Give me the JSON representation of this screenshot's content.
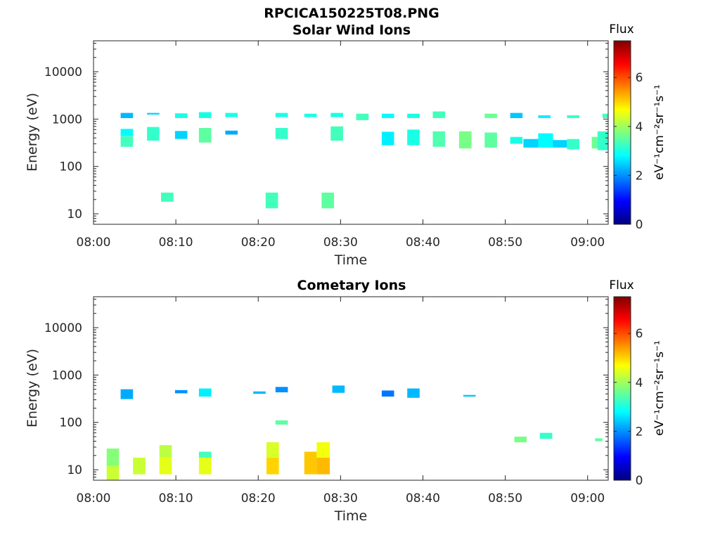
{
  "figure_title": "RPCICA150225T08.PNG",
  "colors": {
    "colormap": [
      "#00007f",
      "#0000ff",
      "#007fff",
      "#00ffff",
      "#7fff7f",
      "#ffff00",
      "#ff7f00",
      "#ff0000",
      "#7f0000"
    ]
  },
  "chart_data": [
    {
      "type": "heatmap",
      "title": "Solar Wind Ions",
      "xlabel": "Time",
      "ylabel": "Energy (eV)",
      "x_ticks": [
        "08:00",
        "08:10",
        "08:20",
        "08:30",
        "08:40",
        "08:50",
        "09:00"
      ],
      "x_range_minutes": [
        0,
        62.5
      ],
      "y_scale": "log",
      "y_ticks": [
        "10",
        "100",
        "1000",
        "10000"
      ],
      "y_range": [
        6,
        45000
      ],
      "colorbar": {
        "title": "Flux",
        "units": "eV⁻¹cm⁻²sr⁻¹s⁻¹",
        "range": [
          0,
          7.5
        ],
        "ticks": [
          "0",
          "2",
          "4",
          "6"
        ]
      },
      "cells": [
        [
          3.3,
          4.8,
          1050,
          1350,
          2.3
        ],
        [
          3.3,
          4.8,
          440,
          620,
          2.8
        ],
        [
          3.3,
          4.8,
          260,
          440,
          3.3
        ],
        [
          6.5,
          8.0,
          1250,
          1350,
          2.5
        ],
        [
          6.5,
          8.0,
          350,
          680,
          3.2
        ],
        [
          9.9,
          11.4,
          1050,
          1320,
          3.0
        ],
        [
          9.9,
          11.4,
          380,
          560,
          2.5
        ],
        [
          12.8,
          14.3,
          1050,
          1400,
          3.0
        ],
        [
          12.8,
          14.3,
          320,
          650,
          3.5
        ],
        [
          16.0,
          17.5,
          1100,
          1350,
          3.0
        ],
        [
          16.0,
          17.5,
          470,
          570,
          2.2
        ],
        [
          8.2,
          9.7,
          18,
          28,
          3.3
        ],
        [
          22.1,
          23.6,
          1100,
          1350,
          3.0
        ],
        [
          22.1,
          23.6,
          380,
          650,
          3.2
        ],
        [
          20.9,
          22.4,
          13,
          28,
          3.3
        ],
        [
          25.6,
          27.1,
          1100,
          1300,
          3.0
        ],
        [
          27.7,
          29.2,
          13,
          28,
          3.5
        ],
        [
          28.8,
          30.3,
          1100,
          1350,
          3.0
        ],
        [
          28.8,
          30.3,
          350,
          700,
          3.3
        ],
        [
          31.9,
          33.4,
          950,
          1300,
          3.3
        ],
        [
          35.0,
          36.5,
          1050,
          1300,
          2.8
        ],
        [
          35.0,
          36.5,
          280,
          540,
          2.7
        ],
        [
          38.1,
          39.6,
          1050,
          1300,
          3.0
        ],
        [
          38.1,
          39.6,
          280,
          600,
          3.0
        ],
        [
          41.2,
          42.7,
          1050,
          1450,
          3.3
        ],
        [
          41.2,
          42.7,
          260,
          550,
          3.4
        ],
        [
          44.4,
          45.9,
          240,
          550,
          3.7
        ],
        [
          47.5,
          49.0,
          1050,
          1300,
          3.6
        ],
        [
          47.5,
          49.0,
          250,
          520,
          3.5
        ],
        [
          50.6,
          52.1,
          1050,
          1350,
          2.4
        ],
        [
          50.6,
          52.1,
          300,
          420,
          3.0
        ],
        [
          52.2,
          54.0,
          250,
          380,
          2.5
        ],
        [
          54.0,
          55.8,
          250,
          500,
          2.8
        ],
        [
          55.8,
          57.5,
          250,
          360,
          2.5
        ],
        [
          54.0,
          55.5,
          1050,
          1200,
          2.7
        ],
        [
          57.5,
          59.0,
          230,
          380,
          3.2
        ],
        [
          57.5,
          59.0,
          1050,
          1200,
          3.2
        ],
        [
          60.5,
          61.8,
          240,
          420,
          3.6
        ],
        [
          61.2,
          62.5,
          220,
          550,
          3.2
        ],
        [
          61.8,
          62.5,
          1050,
          1300,
          3.3
        ]
      ]
    },
    {
      "type": "heatmap",
      "title": "Cometary Ions",
      "xlabel": "Time",
      "ylabel": "Energy (eV)",
      "x_ticks": [
        "08:00",
        "08:10",
        "08:20",
        "08:30",
        "08:40",
        "08:50",
        "09:00"
      ],
      "x_range_minutes": [
        0,
        62.5
      ],
      "y_scale": "log",
      "y_ticks": [
        "10",
        "100",
        "1000",
        "10000"
      ],
      "y_range": [
        6,
        45000
      ],
      "colorbar": {
        "title": "Flux",
        "units": "eV⁻¹cm⁻²sr⁻¹s⁻¹",
        "range": [
          0,
          7.5
        ],
        "ticks": [
          "0",
          "2",
          "4",
          "6"
        ]
      },
      "cells": [
        [
          3.3,
          4.8,
          310,
          500,
          2.2
        ],
        [
          9.9,
          11.4,
          410,
          480,
          2.0
        ],
        [
          12.8,
          14.3,
          350,
          520,
          2.7
        ],
        [
          19.4,
          20.9,
          400,
          450,
          2.3
        ],
        [
          22.1,
          23.6,
          430,
          560,
          2.0
        ],
        [
          22.1,
          23.6,
          90,
          110,
          3.5
        ],
        [
          29.0,
          30.5,
          420,
          600,
          2.3
        ],
        [
          35.0,
          36.5,
          350,
          470,
          1.8
        ],
        [
          38.1,
          39.6,
          330,
          520,
          2.3
        ],
        [
          44.9,
          46.4,
          350,
          380,
          2.4
        ],
        [
          51.1,
          52.6,
          38,
          50,
          3.7
        ],
        [
          54.2,
          55.7,
          45,
          60,
          3.2
        ],
        [
          60.9,
          61.8,
          40,
          46,
          3.5
        ],
        [
          1.6,
          3.1,
          6,
          12,
          4.3
        ],
        [
          1.6,
          3.1,
          12,
          28,
          3.8
        ],
        [
          4.8,
          6.3,
          8,
          18,
          4.3
        ],
        [
          8.0,
          9.5,
          8,
          18,
          4.5
        ],
        [
          8.0,
          9.5,
          18,
          33,
          4.2
        ],
        [
          12.8,
          14.3,
          8,
          18,
          4.5
        ],
        [
          12.8,
          14.3,
          18,
          24,
          3.3
        ],
        [
          21.0,
          22.5,
          8,
          18,
          5.0
        ],
        [
          21.0,
          22.5,
          18,
          38,
          4.4
        ],
        [
          25.6,
          27.1,
          8,
          24,
          5.1
        ],
        [
          27.1,
          28.7,
          8,
          18,
          5.2
        ],
        [
          27.1,
          28.7,
          18,
          38,
          4.6
        ]
      ]
    }
  ]
}
